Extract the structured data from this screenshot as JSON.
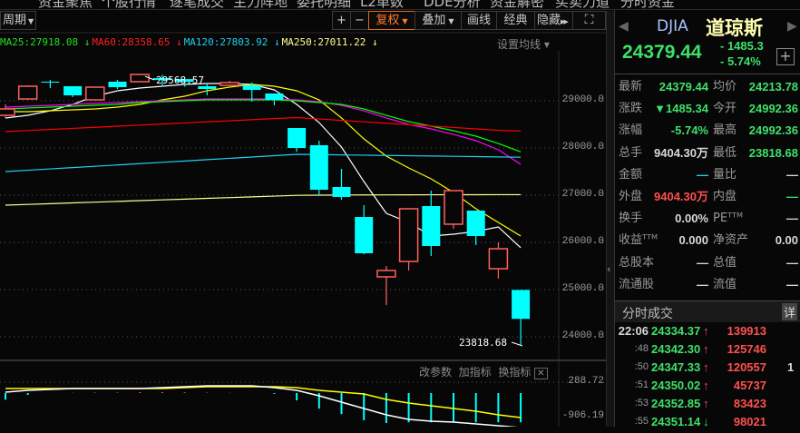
{
  "menu": [
    "资金聚焦",
    "个股行情",
    "逐笔成交",
    "主力阵地",
    "委托明细",
    "L2单数",
    "DDE分析",
    "资金解密",
    "买卖力道",
    "分时资金"
  ],
  "toolbar": {
    "period": "周期",
    "zoom_in": "+",
    "zoom_out": "−",
    "fuquan": "复权",
    "overlay": "叠加",
    "draw": "画线",
    "classic": "经典",
    "hide": "隐藏"
  },
  "legend": [
    {
      "text": "MA25:27918.08 ↓",
      "color": "#20e020"
    },
    {
      "text": "MA60:28358.65 ↓",
      "color": "#ff2020"
    },
    {
      "text": "MA120:27803.92 ↓",
      "color": "#20d0f0"
    },
    {
      "text": "MA250:27011.22 ↓",
      "color": "#ffff90"
    }
  ],
  "set_ma": "设置均线 ▾",
  "indicator_toolbar": {
    "change_params": "改参数",
    "add_indicator": "加指标",
    "switch_indicator": "换指标",
    "close": "✕"
  },
  "price_axis": [
    "29000.0",
    "28000.0",
    "27000.0",
    "26000.0",
    "25000.0",
    "24000.0"
  ],
  "indicator_axis": [
    "288.72",
    "-906.19"
  ],
  "colors": {
    "up": "#ff6060",
    "down": "#00ffff",
    "white_ma": "#ffffff",
    "yellow_ma": "#ffff00",
    "magenta_ma": "#ff00ff",
    "green_ma": "#00ff00",
    "red_ma": "#ff0000",
    "cyan_ma": "#20d0f0",
    "ma250": "#ffff90"
  },
  "chart_data": {
    "type": "candlestick",
    "ylim": [
      23700,
      29650
    ],
    "yticks": [
      29000,
      28000,
      27000,
      26000,
      25000,
      24000
    ],
    "annotations": {
      "high": "29568.57",
      "low": "23818.68"
    },
    "candles": [
      [
        28692,
        28923,
        28635,
        28827
      ],
      [
        29038,
        29327,
        29019,
        29308
      ],
      [
        29404,
        29442,
        29269,
        29385
      ],
      [
        29308,
        29308,
        29077,
        29115
      ],
      [
        29019,
        29288,
        29019,
        29288
      ],
      [
        29404,
        29442,
        29250,
        29288
      ],
      [
        29404,
        29568.57,
        29404,
        29558
      ],
      [
        29480,
        29550,
        29300,
        29440
      ],
      [
        29460,
        29480,
        29300,
        29400
      ],
      [
        29308,
        29365,
        29115,
        29250
      ],
      [
        29327,
        29423,
        29327,
        29385
      ],
      [
        29327,
        29385,
        28980,
        29230
      ],
      [
        29154,
        29154,
        28904,
        29019
      ],
      [
        28423,
        28423,
        27923,
        28000
      ],
      [
        28058,
        28154,
        27000,
        27115
      ],
      [
        27173,
        27558,
        26904,
        26962
      ],
      [
        26538,
        26788,
        25750,
        25769
      ],
      [
        25269,
        25500,
        24673,
        25404
      ],
      [
        25596,
        26712,
        25404,
        26712
      ],
      [
        26769,
        27096,
        25712,
        25923
      ],
      [
        26385,
        27096,
        26288,
        27096
      ],
      [
        26673,
        26673,
        25942,
        26135
      ],
      [
        25442,
        26000,
        25231,
        25865
      ],
      [
        24992.36,
        24992.36,
        23818.68,
        24379.44
      ]
    ],
    "ma_lines": [
      {
        "color": "#ffffff",
        "values": [
          28635,
          28692,
          28788,
          28923,
          29096,
          29212,
          29269,
          29308,
          29346,
          29365,
          29365,
          29346,
          29231,
          28923,
          28538,
          28019,
          27288,
          26615,
          26423,
          26135,
          26173,
          26231,
          26327,
          25885
        ]
      },
      {
        "color": "#ffff00",
        "values": [
          28769,
          28769,
          28788,
          28808,
          28827,
          28865,
          28923,
          29019,
          29096,
          29212,
          29288,
          29346,
          29308,
          29212,
          29019,
          28635,
          28192,
          27827,
          27577,
          27346,
          27058,
          26712,
          26423,
          26135
        ]
      },
      {
        "color": "#ff00ff",
        "values": [
          28865,
          28885,
          28904,
          28923,
          28942,
          28962,
          28981,
          29000,
          29019,
          29038,
          29038,
          29038,
          29038,
          29019,
          28981,
          28904,
          28788,
          28635,
          28500,
          28404,
          28288,
          28154,
          27962,
          27654
        ]
      },
      {
        "name": "MA25",
        "color": "#00ff00",
        "values": [
          28827,
          28846,
          28865,
          28885,
          28904,
          28923,
          28962,
          28981,
          29000,
          29019,
          29019,
          29019,
          29019,
          29000,
          28962,
          28923,
          28827,
          28692,
          28558,
          28462,
          28365,
          28250,
          28096,
          27918.08
        ]
      },
      {
        "name": "MA60",
        "color": "#ff0000",
        "values": [
          28346,
          28369,
          28392,
          28415,
          28438,
          28461,
          28484,
          28507,
          28530,
          28553,
          28576,
          28599,
          28622,
          28644,
          28614,
          28584,
          28554,
          28524,
          28494,
          28464,
          28434,
          28404,
          28374,
          28358.65
        ]
      },
      {
        "name": "MA120",
        "color": "#20d0f0",
        "values": [
          27500,
          27528,
          27556,
          27584,
          27612,
          27640,
          27668,
          27696,
          27724,
          27752,
          27780,
          27808,
          27836,
          27865,
          27859,
          27853,
          27847,
          27841,
          27835,
          27829,
          27823,
          27817,
          27810,
          27803.92
        ]
      },
      {
        "name": "MA250",
        "color": "#ffff90",
        "values": [
          26788,
          26804,
          26820,
          26836,
          26852,
          26868,
          26884,
          26900,
          26916,
          26932,
          26948,
          26964,
          26980,
          26996,
          27000,
          27003,
          27005,
          27006,
          27007,
          27008,
          27009,
          27010,
          27011,
          27011.22
        ]
      }
    ],
    "indicator": {
      "ylim": [
        -1060,
        330
      ],
      "bars": [
        -220,
        -80,
        0,
        27,
        53,
        53,
        106,
        106,
        80,
        53,
        27,
        0,
        -50,
        -240,
        -480,
        -640,
        -820,
        -900,
        -880,
        -880,
        -880,
        -880,
        -880,
        -880
      ],
      "yellow": [
        106,
        106,
        106,
        106,
        106,
        106,
        106,
        106,
        133,
        159,
        159,
        159,
        159,
        133,
        53,
        0,
        -53,
        -212,
        -318,
        -398,
        -477,
        -556,
        -663,
        -742
      ],
      "white": [
        0,
        53,
        80,
        106,
        106,
        106,
        106,
        133,
        159,
        186,
        186,
        186,
        133,
        53,
        -106,
        -292,
        -477,
        -663,
        -795,
        -848,
        -875,
        -928,
        -980,
        -1034
      ]
    }
  },
  "quote": {
    "code": "DJIA",
    "name": "道琼斯",
    "price": "24379.44",
    "change": "- 1485.3",
    "pct": "- 5.74%",
    "add": "+",
    "rows": [
      {
        "l1": "最新",
        "v1": "24379.44",
        "c1": "g",
        "l2": "均价",
        "v2": "24213.78",
        "c2": "g"
      },
      {
        "l1": "涨跌",
        "v1": "▼1485.34",
        "c1": "g",
        "l2": "今开",
        "v2": "24992.36",
        "c2": "g"
      },
      {
        "l1": "涨幅",
        "v1": "-5.74%",
        "c1": "g",
        "l2": "最高",
        "v2": "24992.36",
        "c2": "g"
      },
      {
        "l1": "总手",
        "v1": "9404.30万",
        "c1": "w",
        "l2": "最低",
        "v2": "23818.68",
        "c2": "g"
      },
      {
        "l1": "金额",
        "v1": "—",
        "c1": "c",
        "l2": "量比",
        "v2": "—",
        "c2": "w"
      },
      {
        "l1": "外盘",
        "v1": "9404.30万",
        "c1": "r",
        "l2": "内盘",
        "v2": "—",
        "c2": "g"
      },
      {
        "l1": "换手",
        "v1": "0.00%",
        "c1": "w",
        "l2": "PEᵀᵀᴹ",
        "v2": "—",
        "c2": "w"
      },
      {
        "l1": "收益ᵀᵀᴹ",
        "v1": "0.000",
        "c1": "w",
        "l2": "净资产",
        "v2": "0.00",
        "c2": "w"
      },
      {
        "l1": "总股本",
        "v1": "—",
        "c1": "w",
        "l2": "总值",
        "v2": "—",
        "c2": "w"
      },
      {
        "l1": "流通股",
        "v1": "—",
        "c1": "w",
        "l2": "流值",
        "v2": "—",
        "c2": "w"
      }
    ]
  },
  "ticks": {
    "title": "分时成交",
    "detail": "详",
    "rows": [
      {
        "time": "22:06",
        "price": "24334.37",
        "dir": "↑",
        "vol": "139913",
        "extra": ""
      },
      {
        "time": ":48",
        "price": "24342.30",
        "dir": "↑",
        "vol": "125746",
        "extra": ""
      },
      {
        "time": ":50",
        "price": "24347.33",
        "dir": "↑",
        "vol": "120557",
        "extra": "1"
      },
      {
        "time": ":51",
        "price": "24350.02",
        "dir": "↑",
        "vol": "45737",
        "extra": ""
      },
      {
        "time": ":53",
        "price": "24352.85",
        "dir": "↑",
        "vol": "83423",
        "extra": ""
      },
      {
        "time": ":55",
        "price": "24351.14",
        "dir": "↓",
        "vol": "98021",
        "extra": ""
      }
    ]
  }
}
